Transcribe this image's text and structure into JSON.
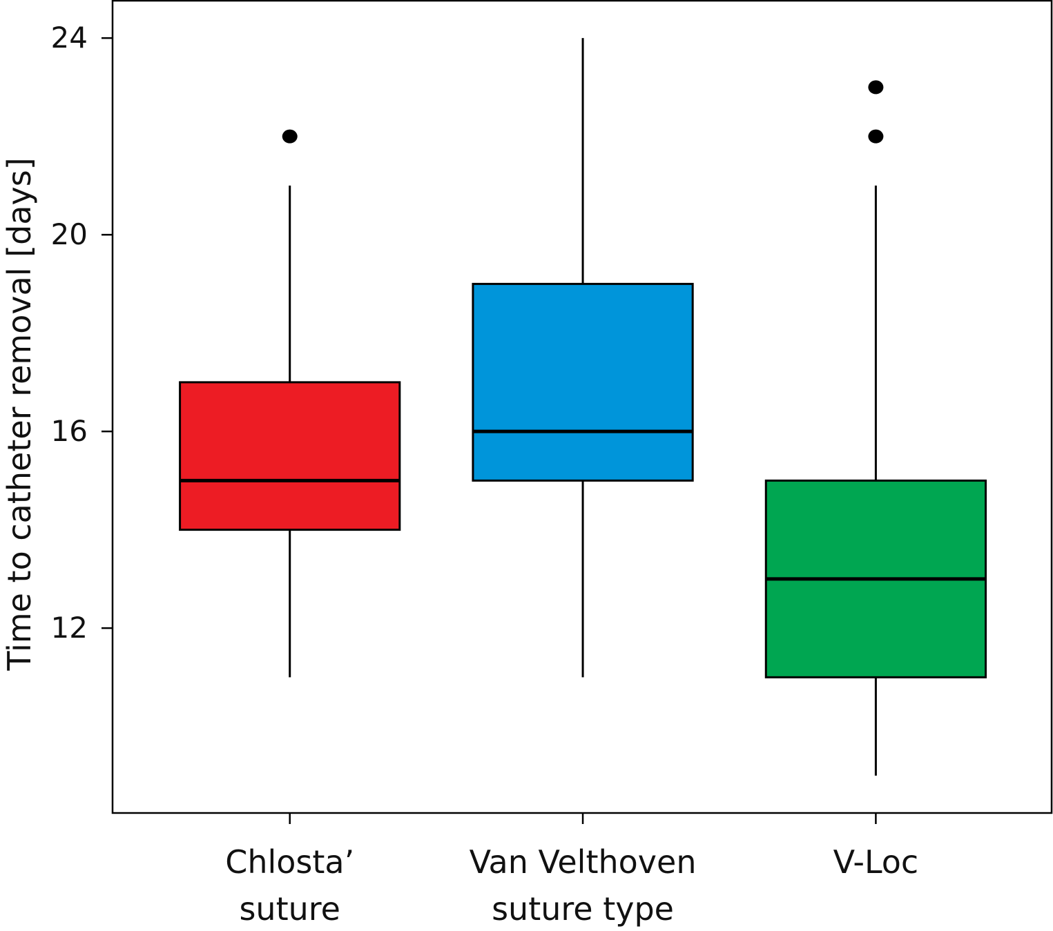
{
  "chart_data": {
    "type": "box",
    "title": "",
    "xlabel": "",
    "ylabel": "Time to catheter removal [days]",
    "ylim": [
      8.24,
      24.76
    ],
    "xlim": [
      0.395,
      3.6
    ],
    "yticks": [
      12,
      16,
      20,
      24
    ],
    "ytick_labels": [
      "12",
      "16",
      "20",
      "24"
    ],
    "grid": false,
    "legend": "none",
    "categories": [
      {
        "lines": [
          "Chlosta’",
          "suture"
        ]
      },
      {
        "lines": [
          "Van Velthoven",
          "suture type"
        ]
      },
      {
        "lines": [
          "V-Loc"
        ]
      }
    ],
    "series": [
      {
        "name": "Chlosta’ suture",
        "color": "#ed1c24",
        "whisker_low": 11,
        "q1": 14,
        "median": 15,
        "q3": 17,
        "whisker_high": 21,
        "outliers": [
          22
        ]
      },
      {
        "name": "Van Velthoven suture type",
        "color": "#0095da",
        "whisker_low": 11,
        "q1": 15,
        "median": 16,
        "q3": 19,
        "whisker_high": 24,
        "outliers": []
      },
      {
        "name": "V-Loc",
        "color": "#00a651",
        "whisker_low": 9,
        "q1": 11,
        "median": 13,
        "q3": 15,
        "whisker_high": 21,
        "outliers": [
          23,
          22
        ]
      }
    ]
  }
}
